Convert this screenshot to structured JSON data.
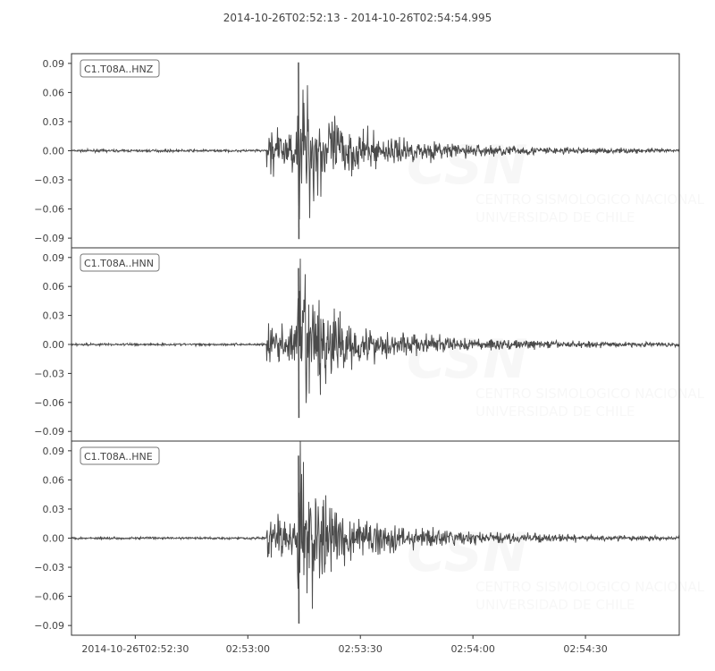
{
  "chart_data": {
    "type": "line",
    "title": "2014-10-26T02:52:13  -  2014-10-26T02:54:54.995",
    "x_range": [
      "2014-10-26T02:52:13",
      "2014-10-26T02:54:54.995"
    ],
    "x_ticks": [
      "2014-10-26T02:52:30",
      "02:53:00",
      "02:53:30",
      "02:54:00",
      "02:54:30"
    ],
    "y_ticks": [
      "0.09",
      "0.06",
      "0.03",
      "0.00",
      "−0.03",
      "−0.06",
      "−0.09"
    ],
    "ylim": [
      -0.1,
      0.1
    ],
    "line_color": "#4b4b4b",
    "watermark": [
      "CSN",
      "CENTRO SISMOLOGICO NACIONAL",
      "UNIVERSIDAD DE CHILE"
    ],
    "traces": [
      {
        "name": "C1.T08A..HNZ",
        "onset": "02:53:05",
        "peak_time": "02:53:13.5",
        "peak_max": 0.091,
        "peak_min": -0.091
      },
      {
        "name": "C1.T08A..HNN",
        "onset": "02:53:05",
        "peak_time": "02:53:13.5",
        "peak_max": 0.079,
        "peak_min": -0.076
      },
      {
        "name": "C1.T08A..HNE",
        "onset": "02:53:05",
        "peak_time": "02:53:13.5",
        "peak_max": 0.085,
        "peak_min": -0.088
      }
    ]
  }
}
